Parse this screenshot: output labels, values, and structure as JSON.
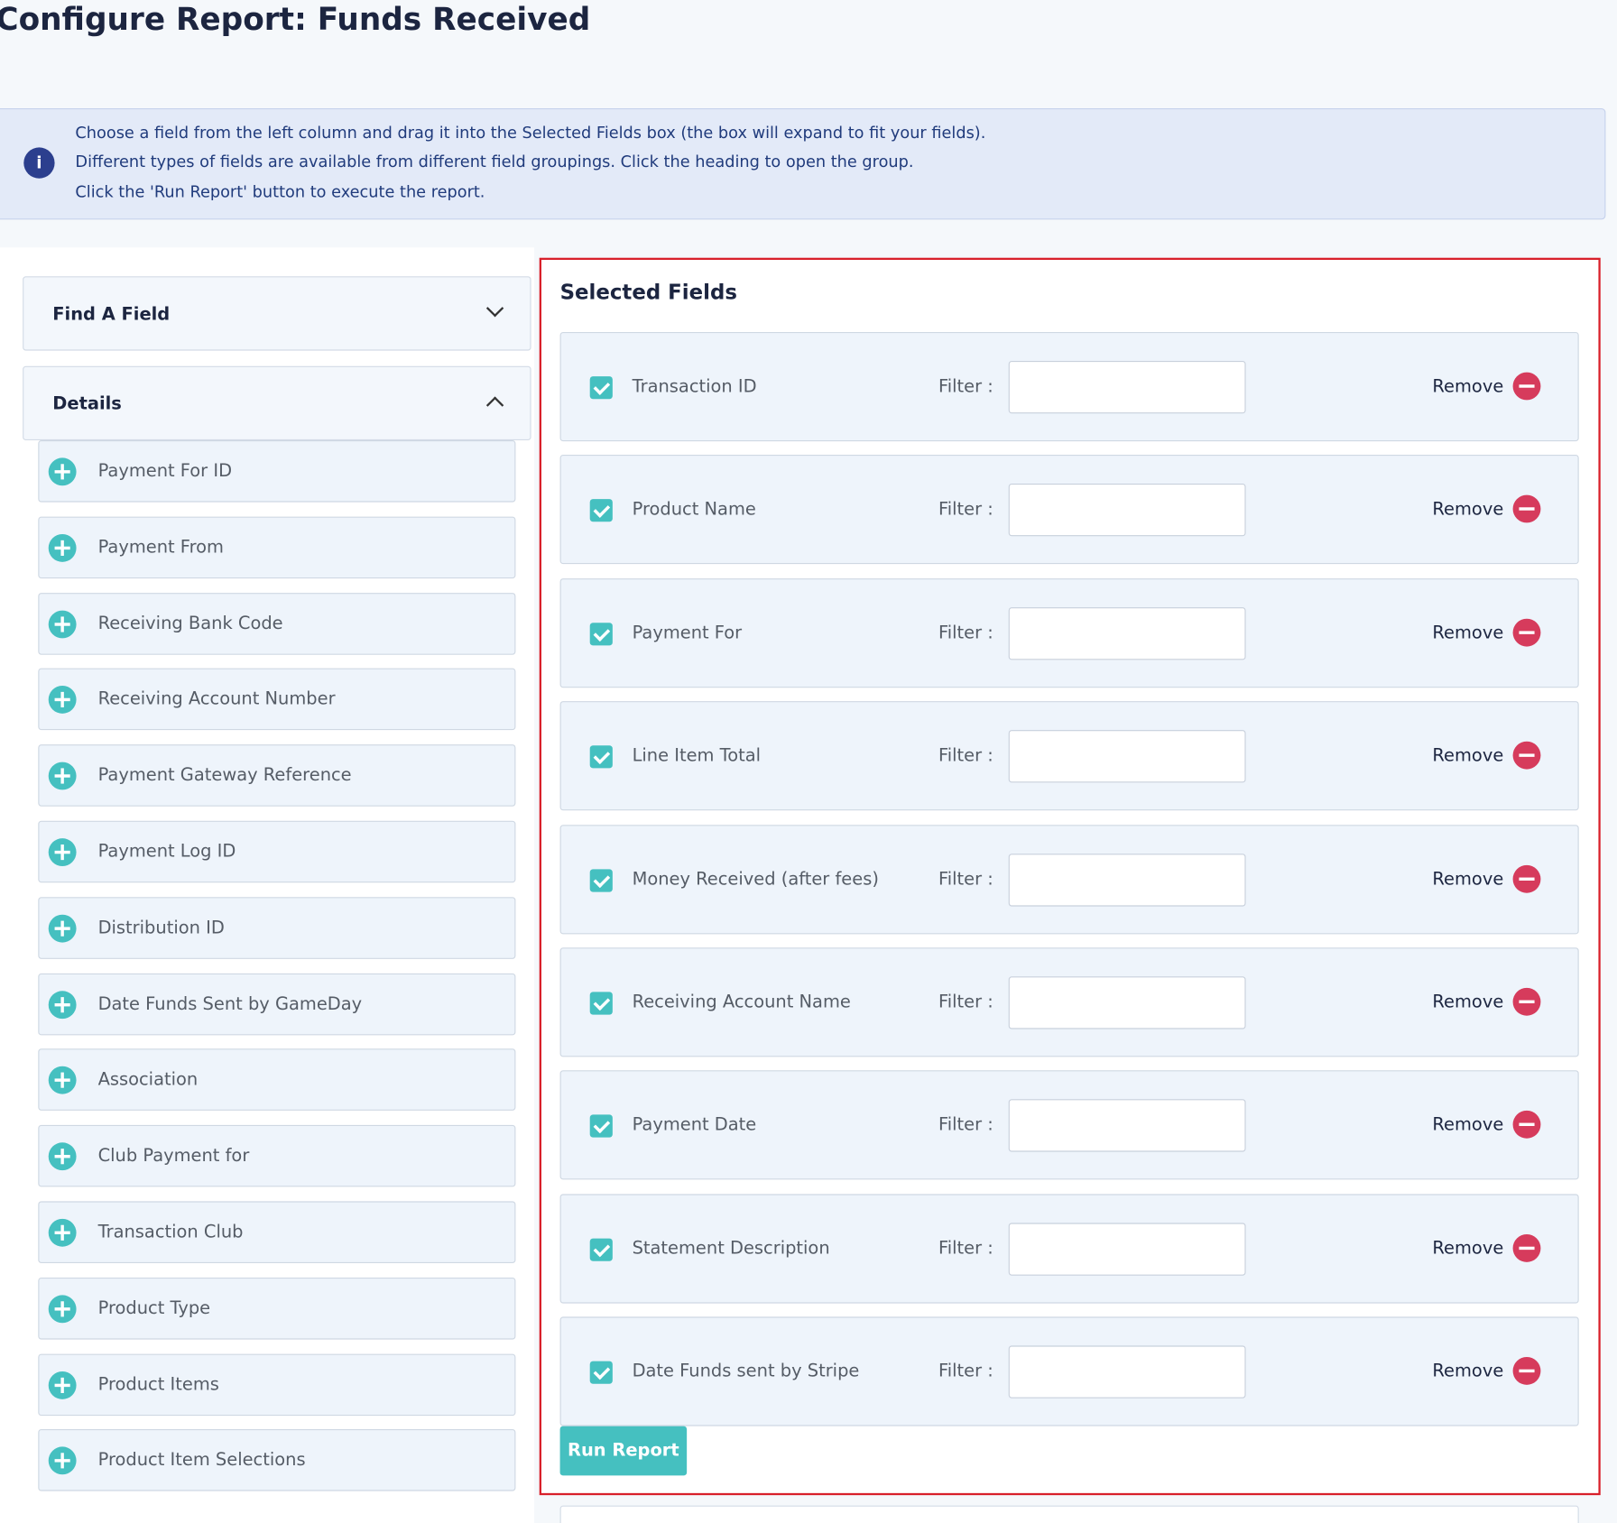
{
  "header": {
    "title": "Configure Report: Funds Received"
  },
  "info": {
    "lines": [
      "Choose a field from the left column and drag it into the Selected Fields box (the box will expand to fit your fields).",
      "Different types of fields are available from different field groupings. Click the heading to open the group.",
      "Click the 'Run Report' button to execute the report."
    ]
  },
  "available": {
    "find_title": "Find A Field",
    "group_title": "Details",
    "fields": [
      "Payment For ID",
      "Payment From",
      "Receiving Bank Code",
      "Receiving Account Number",
      "Payment Gateway Reference",
      "Payment Log ID",
      "Distribution ID",
      "Date Funds Sent by GameDay",
      "Association",
      "Club Payment for",
      "Transaction Club",
      "Product Type",
      "Product Items",
      "Product Item Selections"
    ]
  },
  "selected": {
    "title": "Selected Fields",
    "filter_label": "Filter :",
    "remove_label": "Remove",
    "fields": [
      "Transaction ID",
      "Product Name",
      "Payment For",
      "Line Item Total",
      "Money Received (after fees)",
      "Receiving Account Name",
      "Payment Date",
      "Statement Description",
      "Date Funds sent by Stripe"
    ]
  },
  "run_button": "Run Report"
}
